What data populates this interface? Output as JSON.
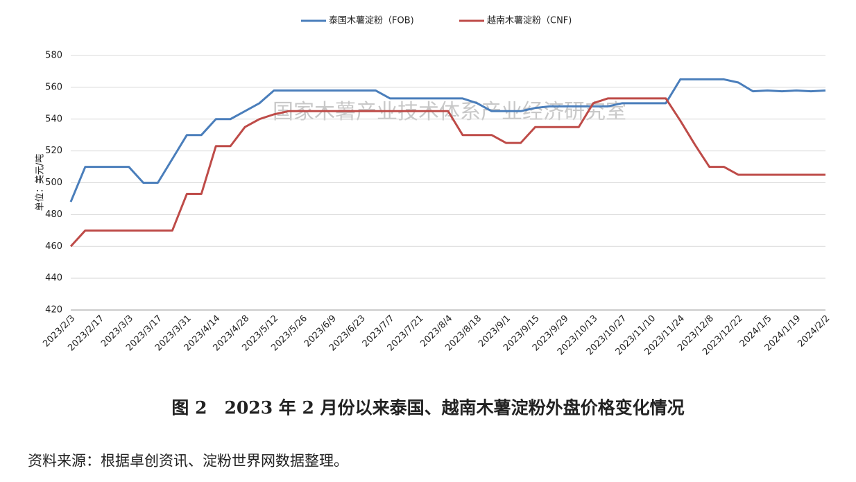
{
  "chart_data": {
    "type": "line",
    "legend": "top",
    "grid": true,
    "y_label": "单位：美元/吨",
    "watermark": "国家木薯产业技术体系产业经济研究室",
    "caption": "图 2　2023 年 2 月份以来泰国、越南木薯淀粉外盘价格变化情况",
    "source": "资料来源：根据卓创资讯、淀粉世界网数据整理。",
    "categories": [
      "2023/2/3",
      null,
      "2023/2/17",
      null,
      "2023/3/3",
      null,
      "2023/3/17",
      null,
      "2023/3/31",
      null,
      "2023/4/14",
      null,
      "2023/4/28",
      null,
      "2023/5/12",
      null,
      "2023/5/26",
      null,
      "2023/6/9",
      null,
      "2023/6/23",
      null,
      "2023/7/7",
      null,
      "2023/7/21",
      null,
      "2023/8/4",
      null,
      "2023/8/18",
      null,
      "2023/9/1",
      null,
      "2023/9/15",
      null,
      "2023/9/29",
      null,
      "2023/10/13",
      null,
      "2023/10/27",
      null,
      "2023/11/10",
      null,
      "2023/11/24",
      null,
      "2023/12/8",
      null,
      "2023/12/22",
      null,
      "2024/1/5",
      null,
      "2024/1/19",
      null,
      "2024/2/2"
    ],
    "series": [
      {
        "name": "泰国木薯淀粉（FOB)",
        "color": "#4a7ebb",
        "values": [
          488,
          510,
          510,
          510,
          510,
          500,
          500,
          515,
          530,
          530,
          540,
          540,
          545,
          550,
          558,
          558,
          558,
          558,
          558,
          558,
          558,
          558,
          553,
          553,
          553,
          553,
          553,
          553,
          550,
          545,
          545,
          545,
          547,
          548,
          548,
          548,
          548,
          548,
          550,
          550,
          550,
          550,
          565,
          565,
          565,
          565,
          563,
          557.5,
          558,
          557.5,
          558,
          557.5,
          558
        ]
      },
      {
        "name": "越南木薯淀粉（CNF)",
        "color": "#be4b48",
        "values": [
          460,
          470,
          470,
          470,
          470,
          470,
          470,
          470,
          493,
          493,
          523,
          523,
          535,
          540,
          543,
          545,
          545,
          545,
          545,
          545,
          545,
          545,
          545,
          545,
          545,
          545,
          545,
          530,
          530,
          530,
          525,
          525,
          535,
          535,
          535,
          535,
          550,
          553,
          553,
          553,
          553,
          553,
          539,
          524,
          510,
          510,
          505,
          505,
          505,
          505,
          505,
          505,
          505
        ]
      }
    ],
    "ylim": [
      420,
      580
    ],
    "yticks": [
      420,
      440,
      460,
      480,
      500,
      520,
      540,
      560,
      580
    ]
  }
}
